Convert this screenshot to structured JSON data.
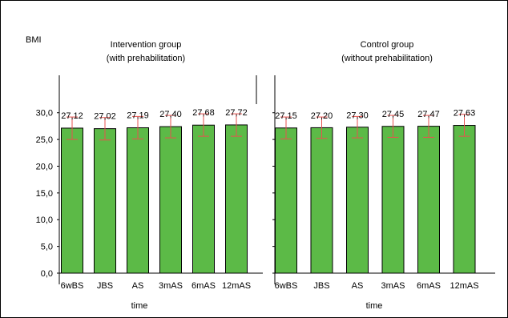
{
  "chart_data": {
    "type": "bar",
    "ylabel": "BMI",
    "xlabel": "time",
    "ylim": [
      0,
      37
    ],
    "yticks": [
      "0,0",
      "5,0",
      "10,0",
      "15,0",
      "20,0",
      "25,0",
      "30,0"
    ],
    "ytick_values": [
      0,
      5,
      10,
      15,
      20,
      25,
      30
    ],
    "colors": {
      "bar": "#5cba47",
      "bar_stroke": "#000000",
      "error": "#e8524f",
      "frame": "#000000"
    },
    "panels": [
      {
        "title_line1": "Intervention group",
        "title_line2": "(with prehabilitation)",
        "categories": [
          "6wBS",
          "JBS",
          "AS",
          "3mAS",
          "6mAS",
          "12mAS"
        ],
        "values": [
          27.12,
          27.02,
          27.19,
          27.4,
          27.68,
          27.72
        ],
        "labels": [
          "27,12",
          "27,02",
          "27,19",
          "27,40",
          "27,68",
          "27,72"
        ],
        "err_low": [
          25.0,
          24.9,
          25.1,
          25.3,
          25.6,
          25.6
        ],
        "err_high": [
          29.2,
          29.1,
          29.3,
          29.5,
          29.8,
          29.8
        ]
      },
      {
        "title_line1": "Control group",
        "title_line2": "(without prehabilitation)",
        "categories": [
          "6wBS",
          "JBS",
          "AS",
          "3mAS",
          "6mAS",
          "12mAS"
        ],
        "values": [
          27.15,
          27.2,
          27.3,
          27.45,
          27.47,
          27.63
        ],
        "labels": [
          "27,15",
          "27,20",
          "27,30",
          "27,45",
          "27,47",
          "27,63"
        ],
        "err_low": [
          25.1,
          25.2,
          25.3,
          25.4,
          25.4,
          25.6
        ],
        "err_high": [
          29.2,
          29.2,
          29.3,
          29.5,
          29.5,
          29.7
        ]
      }
    ]
  }
}
